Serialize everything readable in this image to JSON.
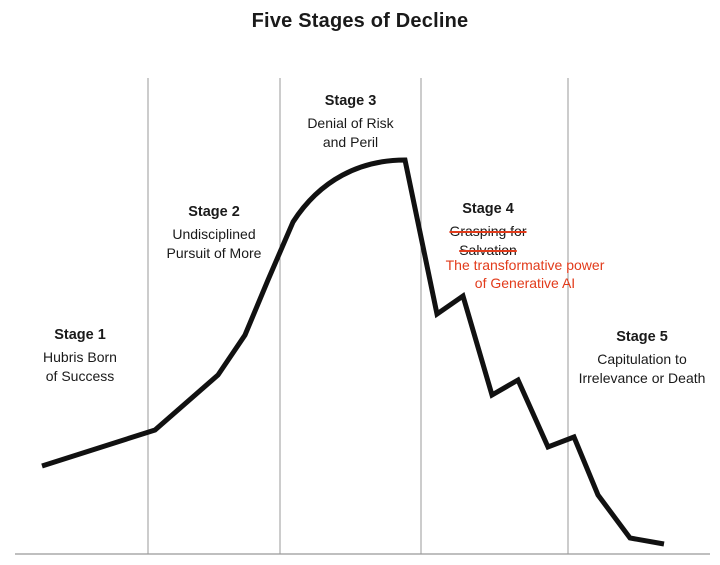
{
  "title": "Five Stages of Decline",
  "colors": {
    "curve": "#111111",
    "divider": "#999999",
    "accent": "#e23b1b",
    "text": "#1a1a1a"
  },
  "stages": [
    {
      "label": "Stage 1",
      "desc_lines": [
        "Hubris Born",
        "of Success"
      ]
    },
    {
      "label": "Stage 2",
      "desc_lines": [
        "Undisciplined",
        "Pursuit of More"
      ]
    },
    {
      "label": "Stage 3",
      "desc_lines": [
        "Denial of Risk",
        "and Peril"
      ]
    },
    {
      "label": "Stage 4",
      "struck_lines": [
        "Grasping for",
        "Salvation"
      ],
      "note_lines": [
        "The transformative power",
        "of Generative AI"
      ]
    },
    {
      "label": "Stage 5",
      "desc_lines": [
        "Capitulation to",
        "Irrelevance or Death"
      ]
    }
  ]
}
